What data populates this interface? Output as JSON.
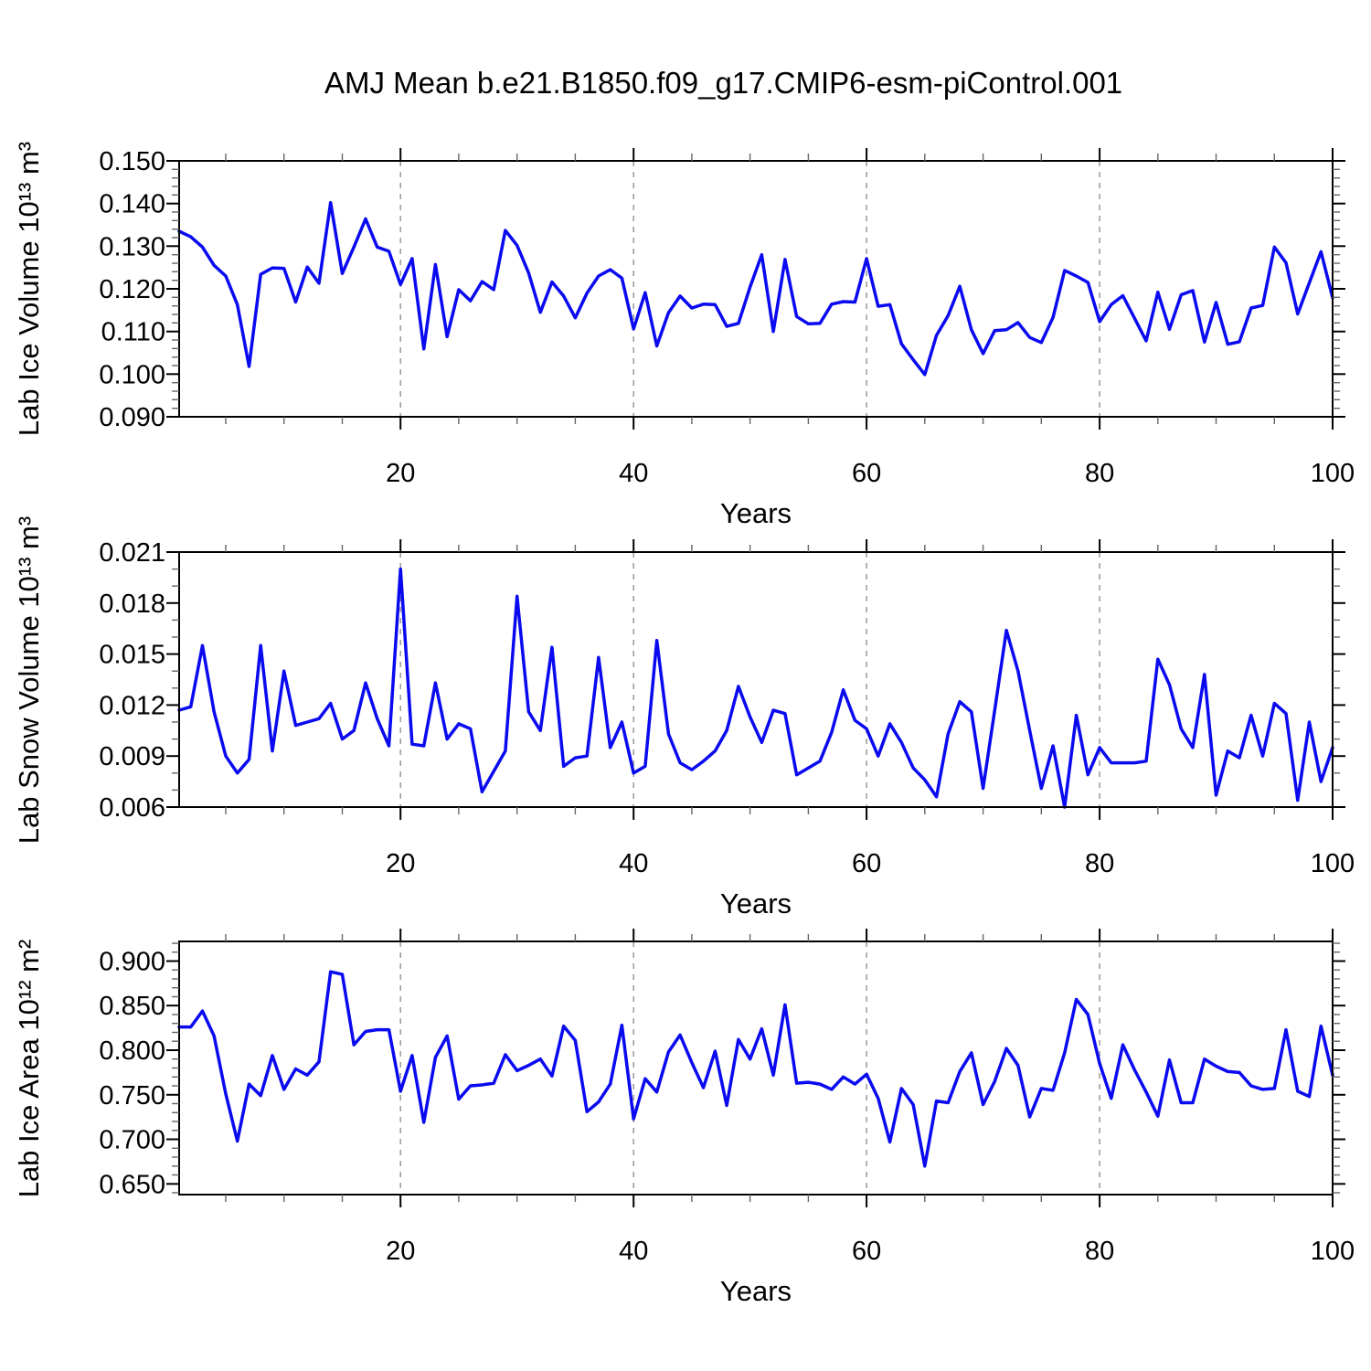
{
  "title": "AMJ Mean b.e21.B1850.f09_g17.CMIP6-esm-piControl.001",
  "line_color": "#0a0af0",
  "grid_color": "#999999",
  "axis_color": "#000000",
  "chart_data": [
    {
      "type": "line",
      "panel": "lab-ice-volume",
      "ylabel": "Lab Ice Volume 10¹³ m³",
      "xlabel": "Years",
      "x_start": 1,
      "x_end": 100,
      "ylim": [
        0.09,
        0.15
      ],
      "yticks": [
        0.09,
        0.1,
        0.11,
        0.12,
        0.13,
        0.14,
        0.15
      ],
      "ytick_labels": [
        "0.090",
        "0.100",
        "0.110",
        "0.120",
        "0.130",
        "0.140",
        "0.150"
      ],
      "y_minor_step": 0.002,
      "xticks": [
        20,
        40,
        60,
        80,
        100
      ],
      "x_minor_step": 5,
      "grid_x": [
        20,
        40,
        60,
        80
      ],
      "grid": "vertical-dashed",
      "legend": "none",
      "values": [
        0.1335,
        0.1322,
        0.1298,
        0.1255,
        0.123,
        0.1163,
        0.1018,
        0.1234,
        0.1249,
        0.1248,
        0.1169,
        0.1251,
        0.1213,
        0.1402,
        0.1236,
        0.1298,
        0.1364,
        0.1298,
        0.1288,
        0.121,
        0.1271,
        0.1059,
        0.1257,
        0.1088,
        0.1198,
        0.1172,
        0.1217,
        0.1198,
        0.1337,
        0.1302,
        0.1237,
        0.1145,
        0.1216,
        0.1183,
        0.1132,
        0.119,
        0.123,
        0.1245,
        0.1225,
        0.1106,
        0.1191,
        0.1066,
        0.1144,
        0.1183,
        0.1155,
        0.1164,
        0.1163,
        0.1112,
        0.1119,
        0.1204,
        0.128,
        0.11,
        0.1269,
        0.1135,
        0.1118,
        0.1119,
        0.1164,
        0.117,
        0.1169,
        0.1271,
        0.1159,
        0.1163,
        0.1071,
        0.1034,
        0.0999,
        0.1091,
        0.1137,
        0.1206,
        0.1104,
        0.1048,
        0.1102,
        0.1104,
        0.1121,
        0.1086,
        0.1074,
        0.1133,
        0.1243,
        0.123,
        0.1215,
        0.1123,
        0.1163,
        0.1184,
        0.1131,
        0.1078,
        0.1192,
        0.1105,
        0.1186,
        0.1196,
        0.1075,
        0.1168,
        0.107,
        0.1076,
        0.1155,
        0.1161,
        0.1298,
        0.1261,
        0.1141,
        0.1214,
        0.1287,
        0.1179
      ]
    },
    {
      "type": "line",
      "panel": "lab-snow-volume",
      "ylabel": "Lab Snow Volume 10¹³ m³",
      "xlabel": "Years",
      "x_start": 1,
      "x_end": 100,
      "ylim": [
        0.006,
        0.021
      ],
      "yticks": [
        0.006,
        0.009,
        0.012,
        0.015,
        0.018,
        0.021
      ],
      "ytick_labels": [
        "0.006",
        "0.009",
        "0.012",
        "0.015",
        "0.018",
        "0.021"
      ],
      "y_minor_step": 0.001,
      "xticks": [
        20,
        40,
        60,
        80,
        100
      ],
      "x_minor_step": 5,
      "grid_x": [
        20,
        40,
        60,
        80
      ],
      "grid": "vertical-dashed",
      "legend": "none",
      "values": [
        0.0117,
        0.0119,
        0.0155,
        0.0116,
        0.009,
        0.008,
        0.0088,
        0.0155,
        0.0093,
        0.014,
        0.0108,
        0.011,
        0.0112,
        0.0121,
        0.01,
        0.0105,
        0.0133,
        0.0112,
        0.0096,
        0.02,
        0.0097,
        0.0096,
        0.0133,
        0.01,
        0.0109,
        0.0106,
        0.0069,
        0.0081,
        0.0093,
        0.0184,
        0.0116,
        0.0105,
        0.0154,
        0.0084,
        0.0089,
        0.009,
        0.0148,
        0.0095,
        0.011,
        0.008,
        0.0084,
        0.0158,
        0.0103,
        0.0086,
        0.0082,
        0.0087,
        0.0093,
        0.0105,
        0.0131,
        0.0113,
        0.0098,
        0.0117,
        0.0115,
        0.0079,
        0.0083,
        0.0087,
        0.0104,
        0.0129,
        0.0111,
        0.0106,
        0.009,
        0.0109,
        0.0098,
        0.0083,
        0.0076,
        0.0066,
        0.0103,
        0.0122,
        0.0116,
        0.0071,
        0.0117,
        0.0164,
        0.014,
        0.0105,
        0.0071,
        0.0096,
        0.006,
        0.0114,
        0.0079,
        0.0095,
        0.0086,
        0.0086,
        0.0086,
        0.0087,
        0.0147,
        0.0132,
        0.0106,
        0.0095,
        0.0138,
        0.0067,
        0.0093,
        0.0089,
        0.0114,
        0.009,
        0.0121,
        0.0115,
        0.0064,
        0.011,
        0.0075,
        0.0095
      ]
    },
    {
      "type": "line",
      "panel": "lab-ice-area",
      "ylabel": "Lab Ice Area 10¹² m²",
      "xlabel": "Years",
      "x_start": 1,
      "x_end": 100,
      "ylim": [
        0.638,
        0.922
      ],
      "yticks": [
        0.65,
        0.7,
        0.75,
        0.8,
        0.85,
        0.9
      ],
      "ytick_labels": [
        "0.650",
        "0.700",
        "0.750",
        "0.800",
        "0.850",
        "0.900"
      ],
      "y_minor_step": 0.01,
      "xticks": [
        20,
        40,
        60,
        80,
        100
      ],
      "x_minor_step": 5,
      "grid_x": [
        20,
        40,
        60,
        80
      ],
      "grid": "vertical-dashed",
      "legend": "none",
      "values": [
        0.826,
        0.826,
        0.844,
        0.816,
        0.751,
        0.698,
        0.762,
        0.749,
        0.794,
        0.756,
        0.779,
        0.772,
        0.787,
        0.888,
        0.885,
        0.806,
        0.821,
        0.823,
        0.823,
        0.754,
        0.794,
        0.719,
        0.792,
        0.816,
        0.745,
        0.76,
        0.761,
        0.763,
        0.795,
        0.777,
        0.783,
        0.79,
        0.771,
        0.827,
        0.811,
        0.731,
        0.742,
        0.762,
        0.828,
        0.723,
        0.768,
        0.753,
        0.798,
        0.817,
        0.786,
        0.758,
        0.799,
        0.738,
        0.812,
        0.79,
        0.824,
        0.772,
        0.851,
        0.763,
        0.764,
        0.762,
        0.756,
        0.77,
        0.762,
        0.773,
        0.746,
        0.697,
        0.757,
        0.739,
        0.67,
        0.743,
        0.741,
        0.776,
        0.797,
        0.739,
        0.765,
        0.802,
        0.783,
        0.725,
        0.757,
        0.755,
        0.797,
        0.857,
        0.84,
        0.785,
        0.746,
        0.806,
        0.778,
        0.753,
        0.726,
        0.789,
        0.741,
        0.741,
        0.79,
        0.782,
        0.776,
        0.775,
        0.76,
        0.756,
        0.757,
        0.823,
        0.754,
        0.748,
        0.827,
        0.772
      ]
    }
  ]
}
